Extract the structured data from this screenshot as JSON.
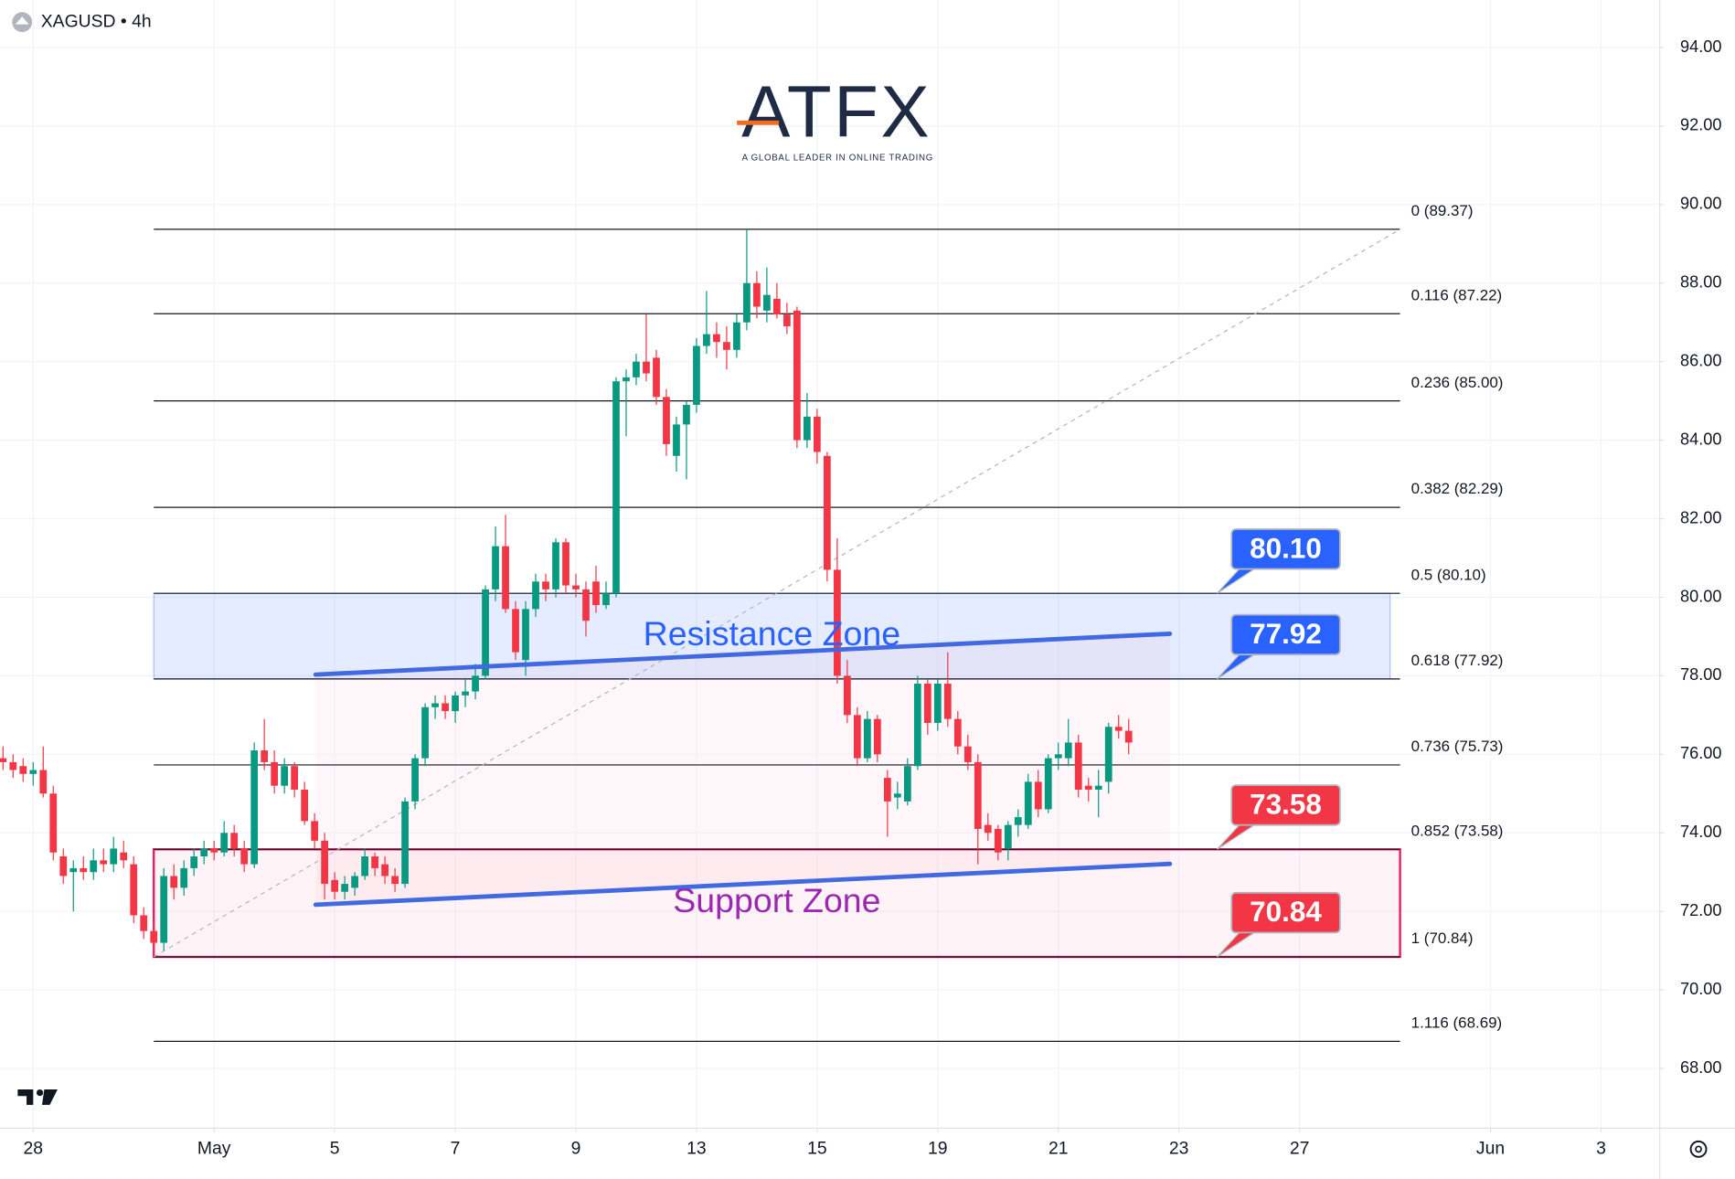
{
  "header": {
    "symbol": "XAGUSD • 4h"
  },
  "logo": {
    "name": "ATFX",
    "tagline": "A GLOBAL LEADER IN ONLINE TRADING"
  },
  "chart_data": {
    "type": "candlestick",
    "up_color": "#089981",
    "down_color": "#f23645",
    "ohlc": [
      [
        75.9,
        76.2,
        75.6,
        75.8
      ],
      [
        75.8,
        76.0,
        75.4,
        75.6
      ],
      [
        75.7,
        75.9,
        75.3,
        75.5
      ],
      [
        75.5,
        75.8,
        75.2,
        75.6
      ],
      [
        75.6,
        76.2,
        74.9,
        75.0
      ],
      [
        75.0,
        75.2,
        73.3,
        73.5
      ],
      [
        73.4,
        73.6,
        72.7,
        72.9
      ],
      [
        73.0,
        73.3,
        72.0,
        73.1
      ],
      [
        73.1,
        73.4,
        72.8,
        73.0
      ],
      [
        73.0,
        73.6,
        72.8,
        73.3
      ],
      [
        73.3,
        73.6,
        73.0,
        73.2
      ],
      [
        73.2,
        73.9,
        73.0,
        73.6
      ],
      [
        73.5,
        73.8,
        73.1,
        73.3
      ],
      [
        73.2,
        73.4,
        71.7,
        71.9
      ],
      [
        71.9,
        72.1,
        71.3,
        71.5
      ],
      [
        71.5,
        71.7,
        70.9,
        71.2
      ],
      [
        71.2,
        73.1,
        71.0,
        72.9
      ],
      [
        72.9,
        73.2,
        72.3,
        72.6
      ],
      [
        72.6,
        73.3,
        72.4,
        73.1
      ],
      [
        73.1,
        73.6,
        72.9,
        73.4
      ],
      [
        73.4,
        73.8,
        73.2,
        73.6
      ],
      [
        73.6,
        73.8,
        73.3,
        73.5
      ],
      [
        73.5,
        74.3,
        73.4,
        74.0
      ],
      [
        74.0,
        74.2,
        73.4,
        73.6
      ],
      [
        73.6,
        73.8,
        73.0,
        73.2
      ],
      [
        73.2,
        76.3,
        73.1,
        76.1
      ],
      [
        76.1,
        76.9,
        75.6,
        75.8
      ],
      [
        75.8,
        76.1,
        75.0,
        75.2
      ],
      [
        75.2,
        75.9,
        75.0,
        75.7
      ],
      [
        75.7,
        75.8,
        74.9,
        75.1
      ],
      [
        75.1,
        75.3,
        74.2,
        74.3
      ],
      [
        74.3,
        74.5,
        73.6,
        73.8
      ],
      [
        73.8,
        74.0,
        72.3,
        72.7
      ],
      [
        72.8,
        73.0,
        72.3,
        72.5
      ],
      [
        72.5,
        72.9,
        72.3,
        72.7
      ],
      [
        72.6,
        73.0,
        72.4,
        72.9
      ],
      [
        72.9,
        73.6,
        72.8,
        73.4
      ],
      [
        73.4,
        73.5,
        72.9,
        73.1
      ],
      [
        73.2,
        73.4,
        72.7,
        72.9
      ],
      [
        72.9,
        73.1,
        72.5,
        72.7
      ],
      [
        72.7,
        74.9,
        72.6,
        74.8
      ],
      [
        74.8,
        76.0,
        74.6,
        75.9
      ],
      [
        75.9,
        77.3,
        75.7,
        77.2
      ],
      [
        77.2,
        77.5,
        76.9,
        77.3
      ],
      [
        77.3,
        77.5,
        76.9,
        77.1
      ],
      [
        77.1,
        77.6,
        76.8,
        77.5
      ],
      [
        77.5,
        77.9,
        77.2,
        77.6
      ],
      [
        77.6,
        78.3,
        77.4,
        78.0
      ],
      [
        78.0,
        80.3,
        77.9,
        80.2
      ],
      [
        80.2,
        81.8,
        79.9,
        81.3
      ],
      [
        81.3,
        82.1,
        79.6,
        79.7
      ],
      [
        79.7,
        79.9,
        78.4,
        78.6
      ],
      [
        78.4,
        79.9,
        78.0,
        79.7
      ],
      [
        79.7,
        80.6,
        79.5,
        80.4
      ],
      [
        80.4,
        80.6,
        79.9,
        80.2
      ],
      [
        80.2,
        81.5,
        80.0,
        81.4
      ],
      [
        81.4,
        81.5,
        80.1,
        80.3
      ],
      [
        80.3,
        80.6,
        80.0,
        80.2
      ],
      [
        80.2,
        80.4,
        79.0,
        79.4
      ],
      [
        80.4,
        80.8,
        79.6,
        79.8
      ],
      [
        79.8,
        80.4,
        79.7,
        80.1
      ],
      [
        80.1,
        85.6,
        80.0,
        85.5
      ],
      [
        85.5,
        85.8,
        84.1,
        85.6
      ],
      [
        85.6,
        86.2,
        85.4,
        86.0
      ],
      [
        86.0,
        87.2,
        85.5,
        85.7
      ],
      [
        86.1,
        86.3,
        84.9,
        85.1
      ],
      [
        85.1,
        85.3,
        83.6,
        83.9
      ],
      [
        83.6,
        84.6,
        83.2,
        84.4
      ],
      [
        84.4,
        85.0,
        83.0,
        84.9
      ],
      [
        84.9,
        86.6,
        84.7,
        86.4
      ],
      [
        86.4,
        87.8,
        86.2,
        86.7
      ],
      [
        86.7,
        87.0,
        86.1,
        86.5
      ],
      [
        86.5,
        86.9,
        85.8,
        86.3
      ],
      [
        86.3,
        87.2,
        86.1,
        87.0
      ],
      [
        87.0,
        89.37,
        86.8,
        88.0
      ],
      [
        88.0,
        88.3,
        87.1,
        87.4
      ],
      [
        87.3,
        88.4,
        87.0,
        87.7
      ],
      [
        87.6,
        88.0,
        87.1,
        87.2
      ],
      [
        87.2,
        87.5,
        86.7,
        86.9
      ],
      [
        87.3,
        87.4,
        83.8,
        84.0
      ],
      [
        84.0,
        85.2,
        83.8,
        84.6
      ],
      [
        84.6,
        84.8,
        83.4,
        83.7
      ],
      [
        83.6,
        83.7,
        80.4,
        80.7
      ],
      [
        80.7,
        81.5,
        77.8,
        78.0
      ],
      [
        78.0,
        78.4,
        76.8,
        77.0
      ],
      [
        77.0,
        77.2,
        75.7,
        75.9
      ],
      [
        75.9,
        77.1,
        75.8,
        76.9
      ],
      [
        76.9,
        77.0,
        75.8,
        76.0
      ],
      [
        75.4,
        75.6,
        73.9,
        74.8
      ],
      [
        74.9,
        75.3,
        74.6,
        75.0
      ],
      [
        74.8,
        75.9,
        74.7,
        75.7
      ],
      [
        75.7,
        78.0,
        75.6,
        77.8
      ],
      [
        77.8,
        77.9,
        76.5,
        76.8
      ],
      [
        76.8,
        77.9,
        76.6,
        77.8
      ],
      [
        77.8,
        78.6,
        76.7,
        76.9
      ],
      [
        76.9,
        77.1,
        76.0,
        76.2
      ],
      [
        76.2,
        76.5,
        75.6,
        75.8
      ],
      [
        75.8,
        76.0,
        73.2,
        74.1
      ],
      [
        74.2,
        74.5,
        73.8,
        74.0
      ],
      [
        74.1,
        74.2,
        73.3,
        73.5
      ],
      [
        73.6,
        74.3,
        73.3,
        74.2
      ],
      [
        74.2,
        74.6,
        73.9,
        74.4
      ],
      [
        74.2,
        75.5,
        74.1,
        75.3
      ],
      [
        75.3,
        75.6,
        74.4,
        74.6
      ],
      [
        74.6,
        76.0,
        74.5,
        75.9
      ],
      [
        75.9,
        76.3,
        75.6,
        76.0
      ],
      [
        75.9,
        76.9,
        75.7,
        76.3
      ],
      [
        76.3,
        76.5,
        74.9,
        75.1
      ],
      [
        75.2,
        75.4,
        74.8,
        75.1
      ],
      [
        75.1,
        75.6,
        74.4,
        75.2
      ],
      [
        75.3,
        76.8,
        75.0,
        76.7
      ],
      [
        76.7,
        77.0,
        76.4,
        76.6
      ],
      [
        76.6,
        76.9,
        76.0,
        76.3
      ]
    ],
    "xlim": [
      -0.3,
      164.84
    ],
    "xticks": [
      {
        "value": 3,
        "label": "28"
      },
      {
        "value": 21,
        "label": "May"
      },
      {
        "value": 33,
        "label": "5"
      },
      {
        "value": 45,
        "label": "7"
      },
      {
        "value": 57,
        "label": "9"
      },
      {
        "value": 69,
        "label": "13"
      },
      {
        "value": 81,
        "label": "15"
      },
      {
        "value": 93,
        "label": "19"
      },
      {
        "value": 105,
        "label": "21"
      },
      {
        "value": 117,
        "label": "23"
      },
      {
        "value": 129,
        "label": "27"
      },
      {
        "value": 148,
        "label": "Jun"
      },
      {
        "value": 159,
        "label": "3"
      }
    ],
    "ylim": [
      66.48,
      95.21
    ],
    "yticks": [
      {
        "value": 94,
        "label": "94.00"
      },
      {
        "value": 92,
        "label": "92.00"
      },
      {
        "value": 90,
        "label": "90.00"
      },
      {
        "value": 88,
        "label": "88.00"
      },
      {
        "value": 86,
        "label": "86.00"
      },
      {
        "value": 84,
        "label": "84.00"
      },
      {
        "value": 82,
        "label": "82.00"
      },
      {
        "value": 80,
        "label": "80.00"
      },
      {
        "value": 78,
        "label": "78.00"
      },
      {
        "value": 76,
        "label": "76.00"
      },
      {
        "value": 74,
        "label": "74.00"
      },
      {
        "value": 72,
        "label": "72.00"
      },
      {
        "value": 70,
        "label": "70.00"
      },
      {
        "value": 68,
        "label": "68.00"
      }
    ],
    "grid": true,
    "fib_xlim": [
      15,
      139
    ],
    "fib_levels": [
      {
        "label": "0 (89.37)",
        "value": 89.37
      },
      {
        "label": "0.116 (87.22)",
        "value": 87.22
      },
      {
        "label": "0.236 (85.00)",
        "value": 85.0
      },
      {
        "label": "0.382 (82.29)",
        "value": 82.29
      },
      {
        "label": "0.5 (80.10)",
        "value": 80.1
      },
      {
        "label": "0.618 (77.92)",
        "value": 77.92
      },
      {
        "label": "0.736 (75.73)",
        "value": 75.73
      },
      {
        "label": "0.852 (73.58)",
        "value": 73.58
      },
      {
        "label": "1 (70.84)",
        "value": 70.84
      },
      {
        "label": "1.116 (68.69)",
        "value": 68.69
      }
    ],
    "zones": [
      {
        "name": "Resistance Zone",
        "ylim": [
          77.92,
          80.1
        ],
        "xlim": [
          15,
          138
        ],
        "color": "#2962ff",
        "label_color": "#2962ff"
      },
      {
        "name": "Support Zone",
        "ylim": [
          70.84,
          73.58
        ],
        "xlim": [
          15,
          139
        ],
        "color": "#e91e63",
        "label_color": "#9c27b0"
      }
    ],
    "trend_lines": [
      {
        "x": [
          31.1,
          116.1
        ],
        "y": [
          78.03,
          79.07
        ],
        "color": "#4169e1"
      },
      {
        "x": [
          31.1,
          116.1
        ],
        "y": [
          72.17,
          73.21
        ],
        "color": "#4169e1"
      }
    ],
    "price_tags": [
      {
        "value": 80.1,
        "label": "80.10",
        "color": "#2962ff"
      },
      {
        "value": 77.92,
        "label": "77.92",
        "color": "#2962ff"
      },
      {
        "value": 73.58,
        "label": "73.58",
        "color": "#f23645"
      },
      {
        "value": 70.84,
        "label": "70.84",
        "color": "#f23645"
      }
    ]
  }
}
